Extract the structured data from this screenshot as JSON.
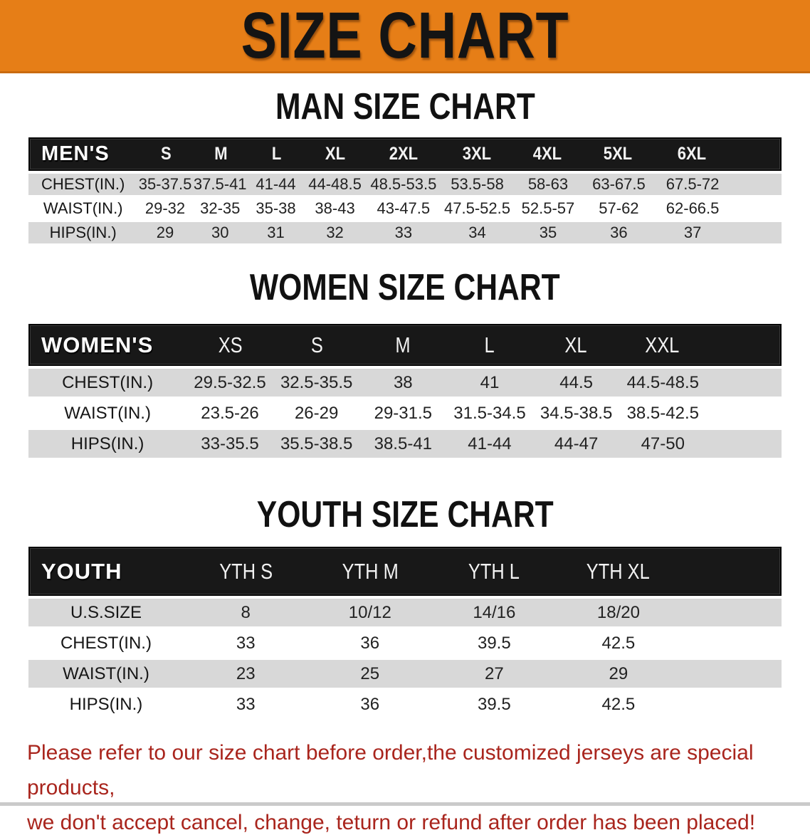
{
  "colors": {
    "banner_bg": "#e67e17",
    "banner_edge": "#c96a10",
    "bar_bg": "#181818",
    "stripe": "#d8d8d8",
    "title_black": "#111111",
    "disclaimer_red": "#a9251d",
    "strip_gray": "#cacaca"
  },
  "banner": {
    "title": "SIZE CHART"
  },
  "men": {
    "title": "MAN SIZE CHART",
    "label": "MEN'S",
    "sizes": [
      "S",
      "M",
      "L",
      "XL",
      "2XL",
      "3XL",
      "4XL",
      "5XL",
      "6XL"
    ],
    "rows": [
      {
        "label": "CHEST(IN.)",
        "values": [
          "35-37.5",
          "37.5-41",
          "41-44",
          "44-48.5",
          "48.5-53.5",
          "53.5-58",
          "58-63",
          "63-67.5",
          "67.5-72"
        ]
      },
      {
        "label": "WAIST(IN.)",
        "values": [
          "29-32",
          "32-35",
          "35-38",
          "38-43",
          "43-47.5",
          "47.5-52.5",
          "52.5-57",
          "57-62",
          "62-66.5"
        ]
      },
      {
        "label": "HIPS(IN.)",
        "values": [
          "29",
          "30",
          "31",
          "32",
          "33",
          "34",
          "35",
          "36",
          "37"
        ]
      }
    ]
  },
  "women": {
    "title": "WOMEN SIZE CHART",
    "label": "WOMEN'S",
    "sizes": [
      "XS",
      "S",
      "M",
      "L",
      "XL",
      "XXL"
    ],
    "rows": [
      {
        "label": "CHEST(IN.)",
        "values": [
          "29.5-32.5",
          "32.5-35.5",
          "38",
          "41",
          "44.5",
          "44.5-48.5"
        ]
      },
      {
        "label": "WAIST(IN.)",
        "values": [
          "23.5-26",
          "26-29",
          "29-31.5",
          "31.5-34.5",
          "34.5-38.5",
          "38.5-42.5"
        ]
      },
      {
        "label": "HIPS(IN.)",
        "values": [
          "33-35.5",
          "35.5-38.5",
          "38.5-41",
          "41-44",
          "44-47",
          "47-50"
        ]
      }
    ]
  },
  "youth": {
    "title": "YOUTH SIZE CHART",
    "label": "YOUTH",
    "sizes": [
      "YTH S",
      "YTH M",
      "YTH L",
      "YTH XL"
    ],
    "rows": [
      {
        "label": "U.S.SIZE",
        "values": [
          "8",
          "10/12",
          "14/16",
          "18/20"
        ]
      },
      {
        "label": "CHEST(IN.)",
        "values": [
          "33",
          "36",
          "39.5",
          "42.5"
        ]
      },
      {
        "label": "WAIST(IN.)",
        "values": [
          "23",
          "25",
          "27",
          "29"
        ]
      },
      {
        "label": "HIPS(IN.)",
        "values": [
          "33",
          "36",
          "39.5",
          "42.5"
        ]
      }
    ]
  },
  "disclaimer": {
    "line1": "Please refer to our size chart before order,the customized jerseys are special products,",
    "line2": "we don't accept cancel, change, teturn or refund after order has been placed!"
  }
}
